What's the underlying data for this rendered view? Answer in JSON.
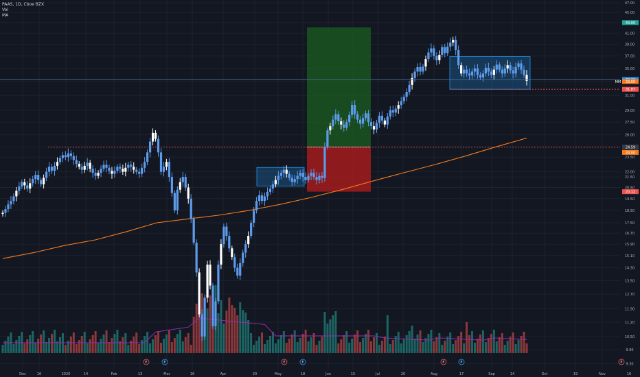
{
  "legend": {
    "symbol_line": "PAAS, 1D, Cboe BZX",
    "vol_label": "Vol",
    "ma_label": "MA"
  },
  "colors": {
    "background": "#131722",
    "up": "#5d9cec",
    "up_alt": "#ffffff",
    "down": "#ef5350",
    "ma": "#f57c1f",
    "vol_up": "#26a69a",
    "vol_down": "#ef5350",
    "vol_ma": "#9c27b0",
    "profit_zone": "#1b5e20",
    "loss_zone": "#b71c1c",
    "box": "#2196f3",
    "grid": "#1e222d"
  },
  "price_axis": {
    "ticks": [
      "47.00",
      "45.00",
      "43.00",
      "41.00",
      "39.00",
      "37.00",
      "35.00",
      "33.00",
      "31.00",
      "29.00",
      "27.50",
      "26.00",
      "24.59",
      "23.50",
      "22.00",
      "21.50",
      "20.50",
      "19.50",
      "18.50",
      "17.50",
      "16.70",
      "15.90",
      "15.10",
      "14.30",
      "13.50",
      "12.70",
      "11.90",
      "11.20",
      "10.50",
      "9.90",
      "9.30"
    ],
    "tags": [
      {
        "text": "43.00",
        "color": "#26a69a"
      },
      {
        "text": "33.30",
        "color": "#2196f3"
      },
      {
        "text": "33.00",
        "color": "#f57c1f"
      },
      {
        "text": "31.87",
        "color": "#ef5350"
      },
      {
        "text": "24.59",
        "color": "#363a45"
      },
      {
        "text": "24.00",
        "color": "#f57c1f"
      },
      {
        "text": "20.12",
        "color": "#ef5350"
      }
    ],
    "tag_side_label": "MM"
  },
  "time_axis": {
    "labels": [
      "Dec",
      "16",
      "2020",
      "14",
      "Feb",
      "13",
      "Mar",
      "16",
      "Apr",
      "20",
      "May",
      "18",
      "Jun",
      "15",
      "Jul",
      "20",
      "Aug",
      "17",
      "Sep",
      "14",
      "Oct",
      "19",
      "Nov",
      "16"
    ]
  },
  "events": [
    "E",
    "E",
    "E",
    "E",
    "E",
    "E",
    "E"
  ],
  "chart_data": {
    "type": "candlestick",
    "title": "PAAS, 1D, Cboe BZX",
    "x_range": [
      "Dec 2019",
      "Nov 2020"
    ],
    "ylim": [
      9.0,
      47.0
    ],
    "y_scale": "log",
    "grid": true,
    "price_path": [
      18.3,
      18.6,
      19.0,
      19.3,
      19.7,
      20.2,
      20.6,
      21.0,
      20.7,
      20.4,
      20.9,
      21.3,
      21.7,
      21.2,
      20.8,
      21.4,
      22.0,
      22.5,
      22.1,
      22.6,
      23.0,
      23.4,
      23.7,
      23.5,
      23.9,
      23.6,
      23.2,
      22.8,
      22.5,
      22.2,
      22.6,
      22.9,
      22.3,
      21.9,
      21.6,
      21.9,
      22.3,
      22.7,
      22.4,
      22.1,
      21.8,
      22.1,
      22.5,
      22.3,
      22.0,
      22.4,
      22.7,
      22.5,
      22.2,
      22.0,
      21.8,
      22.4,
      23.0,
      24.0,
      25.2,
      26.2,
      25.5,
      24.0,
      22.0,
      22.5,
      23.0,
      21.5,
      20.0,
      18.5,
      20.3,
      21.0,
      21.5,
      20.5,
      19.5,
      17.8,
      16.0,
      14.0,
      11.6,
      10.5,
      12.5,
      14.5,
      13.2,
      11.0,
      12.3,
      14.5,
      15.9,
      17.2,
      16.5,
      15.6,
      15.0,
      14.3,
      13.8,
      14.6,
      15.3,
      15.9,
      16.5,
      17.5,
      18.5,
      19.3,
      19.8,
      19.3,
      19.7,
      20.1,
      20.4,
      20.8,
      21.2,
      21.6,
      21.9,
      22.2,
      21.8,
      21.4,
      21.0,
      21.3,
      21.6,
      21.9,
      21.5,
      21.2,
      21.6,
      21.9,
      21.5,
      21.2,
      21.6,
      21.4,
      24.6,
      26.5,
      27.0,
      27.8,
      28.5,
      27.6,
      27.2,
      26.8,
      27.5,
      28.4,
      29.7,
      28.5,
      27.8,
      27.3,
      28.0,
      28.6,
      27.5,
      27.0,
      26.6,
      27.4,
      28.3,
      27.7,
      27.2,
      28.2,
      29.0,
      28.7,
      29.2,
      29.7,
      30.2,
      30.8,
      31.5,
      32.5,
      33.5,
      34.5,
      35.2,
      34.5,
      35.3,
      36.5,
      37.6,
      38.3,
      37.0,
      36.3,
      37.2,
      38.5,
      37.5,
      38.6,
      39.3,
      39.8,
      38.0,
      35.5,
      34.2,
      34.8,
      34.2,
      33.9,
      34.5,
      35.0,
      34.0,
      33.6,
      34.2,
      35.1,
      34.5,
      34.0,
      34.8,
      35.6,
      34.8,
      34.2,
      35.0,
      35.5,
      34.7,
      34.2,
      35.2,
      35.8,
      34.8,
      34.0,
      33.1
    ],
    "moving_average": [
      {
        "x": "Dec",
        "y": 14.9
      },
      {
        "x": "Feb",
        "y": 16.2
      },
      {
        "x": "Mar",
        "y": 17.5
      },
      {
        "x": "Apr",
        "y": 18.1
      },
      {
        "x": "May",
        "y": 19.0
      },
      {
        "x": "Jun",
        "y": 20.3
      },
      {
        "x": "Jul",
        "y": 21.9
      },
      {
        "x": "Aug",
        "y": 23.6
      },
      {
        "x": "Sep",
        "y": 25.6
      }
    ],
    "volume_ma": "purple line over volume bars",
    "annotations": [
      {
        "type": "range_box",
        "from": "Apr 21",
        "to": "May 12",
        "top": 22.3,
        "bottom": 20.9
      },
      {
        "type": "long_position",
        "from": "May 18",
        "to": "Jun 17",
        "target": 43.0,
        "entry": 24.59,
        "stop": 20.12
      },
      {
        "type": "range_box",
        "from": "Aug 5",
        "to": "Sep 25",
        "top": 36.9,
        "bottom": 31.87
      },
      {
        "type": "horizontal_line",
        "value": 24.59,
        "style": "dashed red"
      },
      {
        "type": "horizontal_line",
        "value": 31.87,
        "style": "dashed red"
      },
      {
        "type": "horizontal_line",
        "value": 33.3,
        "style": "solid blue"
      }
    ]
  }
}
